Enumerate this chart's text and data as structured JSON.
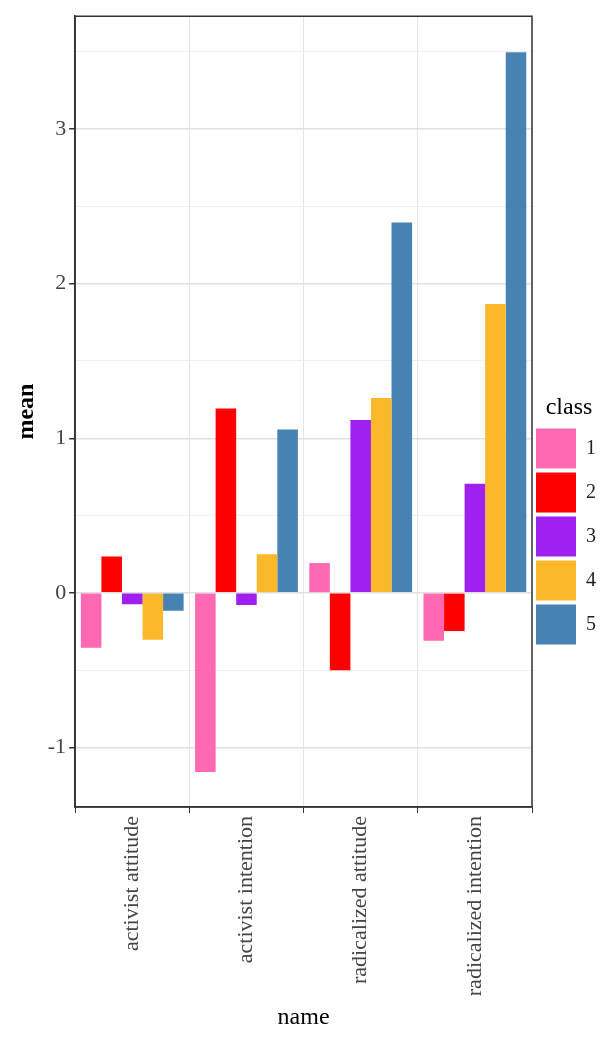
{
  "chart_data": {
    "type": "bar",
    "xlabel": "name",
    "ylabel": "mean",
    "legend_title": "class",
    "legend": "right",
    "grid": true,
    "categories": [
      "activist attitude",
      "activist intention",
      "radicalized attitude",
      "radicalized intention"
    ],
    "series": [
      {
        "name": "1",
        "color": "#ff69b4",
        "values": [
          -0.355,
          -1.159,
          0.193,
          -0.31
        ]
      },
      {
        "name": "2",
        "color": "#ff0000",
        "values": [
          0.236,
          1.193,
          -0.5,
          -0.247
        ]
      },
      {
        "name": "3",
        "color": "#a020f0",
        "values": [
          -0.074,
          -0.078,
          1.118,
          0.706
        ]
      },
      {
        "name": "4",
        "color": "#fbb829",
        "values": [
          -0.304,
          0.25,
          1.26,
          1.868
        ]
      },
      {
        "name": "5",
        "color": "#4682b4",
        "values": [
          -0.115,
          1.057,
          2.395,
          3.497
        ]
      }
    ],
    "ylim": [
      -1.385,
      3.73
    ],
    "yticks": [
      {
        "value": -1,
        "label": "-1"
      },
      {
        "value": -0.5,
        "label": null
      },
      0,
      {
        "value": 0.5,
        "label": null
      },
      1,
      {
        "value": 1.5,
        "label": null
      },
      2,
      {
        "value": 2.5,
        "label": null
      },
      3,
      {
        "value": 3.5,
        "label": null
      }
    ]
  }
}
